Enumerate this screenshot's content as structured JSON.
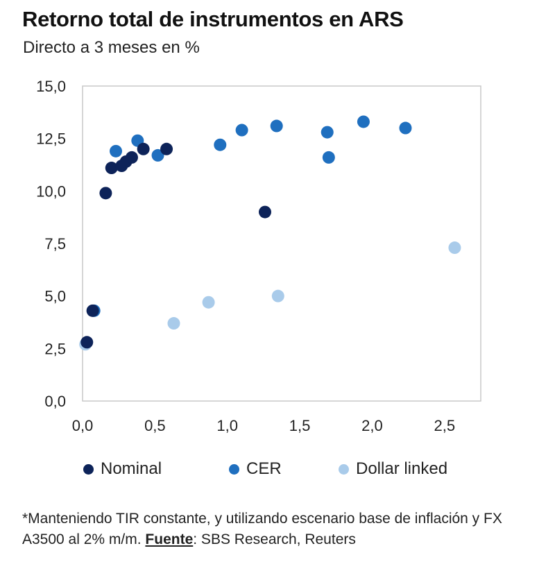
{
  "chart_data": {
    "type": "scatter",
    "title": "Retorno total de instrumentos en ARS",
    "subtitle": "Directo a 3 meses en %",
    "xlim": [
      0.0,
      2.75
    ],
    "ylim": [
      0.0,
      15.0
    ],
    "x_ticks": [
      "0,0",
      "0,5",
      "1,0",
      "1,5",
      "2,0",
      "2,5"
    ],
    "y_ticks": [
      "0,0",
      "2,5",
      "5,0",
      "7,5",
      "10,0",
      "12,5",
      "15,0"
    ],
    "grid": false,
    "legend_position": "bottom",
    "series": [
      {
        "name": "Nominal",
        "color": "#0d2359",
        "points": [
          {
            "x": 0.03,
            "y": 2.8
          },
          {
            "x": 0.07,
            "y": 4.3
          },
          {
            "x": 0.16,
            "y": 9.9
          },
          {
            "x": 0.2,
            "y": 11.1
          },
          {
            "x": 0.27,
            "y": 11.2
          },
          {
            "x": 0.3,
            "y": 11.4
          },
          {
            "x": 0.34,
            "y": 11.6
          },
          {
            "x": 0.42,
            "y": 12.0
          },
          {
            "x": 0.58,
            "y": 12.0
          },
          {
            "x": 1.26,
            "y": 9.0
          }
        ]
      },
      {
        "name": "CER",
        "color": "#1f6fbf",
        "points": [
          {
            "x": 0.08,
            "y": 4.3
          },
          {
            "x": 0.23,
            "y": 11.9
          },
          {
            "x": 0.38,
            "y": 12.4
          },
          {
            "x": 0.52,
            "y": 11.7
          },
          {
            "x": 0.95,
            "y": 12.2
          },
          {
            "x": 1.1,
            "y": 12.9
          },
          {
            "x": 1.34,
            "y": 13.1
          },
          {
            "x": 1.69,
            "y": 12.8
          },
          {
            "x": 1.7,
            "y": 11.6
          },
          {
            "x": 1.94,
            "y": 13.3
          },
          {
            "x": 2.23,
            "y": 13.0
          }
        ]
      },
      {
        "name": "Dollar linked",
        "color": "#a9cbea",
        "points": [
          {
            "x": 0.02,
            "y": 2.7
          },
          {
            "x": 0.63,
            "y": 3.7
          },
          {
            "x": 0.87,
            "y": 4.7
          },
          {
            "x": 1.35,
            "y": 5.0
          },
          {
            "x": 2.57,
            "y": 7.3
          }
        ]
      }
    ]
  },
  "footnote": {
    "text_before": "*Manteniendo TIR constante, y utilizando escenario base de inflación y FX A3500 al 2% m/m. ",
    "bold_label": "Fuente",
    "text_after": ": SBS Research, Reuters"
  }
}
